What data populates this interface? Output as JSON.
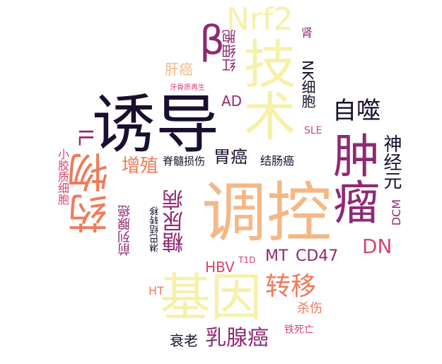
{
  "palette": {
    "dark": "#1a0f2e",
    "plum": "#8e2a72",
    "rose": "#d9446e",
    "coral": "#f07a5a",
    "peach": "#f4b886",
    "cream": "#f7f0a8"
  },
  "words": {
    "nrf2": "Nrf2",
    "beta": "β",
    "kidney": "肾",
    "rbc": "红细胞",
    "technology": "技术",
    "liver_cancer": "肝癌",
    "dental_pulp": "牙骨质再生",
    "ad": "AD",
    "nk": "NK细胞",
    "autophagy": "自噬",
    "induction": "诱导",
    "il": "IL",
    "sle": "SLE",
    "tumor": "肿瘤",
    "neuron": "神经元",
    "microglia": "小胶质细胞",
    "drug": "药物",
    "proliferation": "增殖",
    "spinal": "脊髓损伤",
    "gastric": "胃癌",
    "colorectal": "结肠癌",
    "regulation": "调控",
    "prostate": "前列腺癌",
    "lymph": "淋巴结转移",
    "diabetes": "糖尿病",
    "dcm": "DCM",
    "dn": "DN",
    "mt": "MT",
    "cd47": "CD47",
    "hbv": "HBV",
    "t1d": "T1D",
    "gene": "基因",
    "metastasis": "转移",
    "ht": "HT",
    "killing": "杀伤",
    "ferroptosis": "铁死亡",
    "aging": "衰老",
    "breast": "乳腺癌"
  }
}
